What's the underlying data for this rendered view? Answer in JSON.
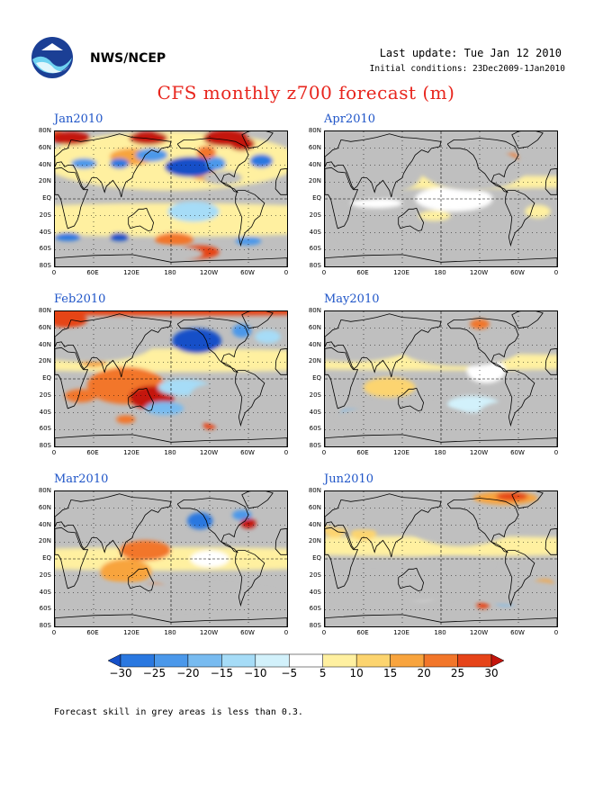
{
  "header": {
    "org": "NWS/NCEP",
    "last_update": "Last update: Tue Jan 12 2010",
    "initial_conditions": "Initial conditions: 23Dec2009-1Jan2010",
    "title": "CFS monthly z700 forecast (m)"
  },
  "chart_data": {
    "type": "heatmap",
    "title": "CFS monthly z700 forecast (m)",
    "variable": "700 hPa geopotential height anomaly",
    "units": "m",
    "panels": [
      {
        "name": "Jan2010"
      },
      {
        "name": "Apr2010"
      },
      {
        "name": "Feb2010"
      },
      {
        "name": "May2010"
      },
      {
        "name": "Mar2010"
      },
      {
        "name": "Jun2010"
      }
    ],
    "lat_ticks": [
      "80N",
      "60N",
      "40N",
      "20N",
      "EQ",
      "20S",
      "40S",
      "60S",
      "80S"
    ],
    "lon_ticks": [
      "0",
      "60E",
      "120E",
      "180",
      "120W",
      "60W",
      "0"
    ],
    "color_levels": [
      -30,
      -25,
      -20,
      -15,
      -10,
      -5,
      5,
      10,
      15,
      20,
      25,
      30
    ],
    "colors": [
      "#1650c8",
      "#2a78e0",
      "#4b98ea",
      "#78bbf0",
      "#a6dcf7",
      "#d2f1fb",
      "#ffffff",
      "#fff0a0",
      "#fcd46f",
      "#f8a43e",
      "#f2762a",
      "#e64419",
      "#c4140c"
    ],
    "masked_color": "#bfbfbf"
  },
  "colorbar": {
    "labels": [
      "−30",
      "−25",
      "−20",
      "−15",
      "−10",
      "−5",
      "5",
      "10",
      "15",
      "20",
      "25",
      "30"
    ]
  },
  "footnote": "Forecast skill in grey areas is less than 0.3."
}
